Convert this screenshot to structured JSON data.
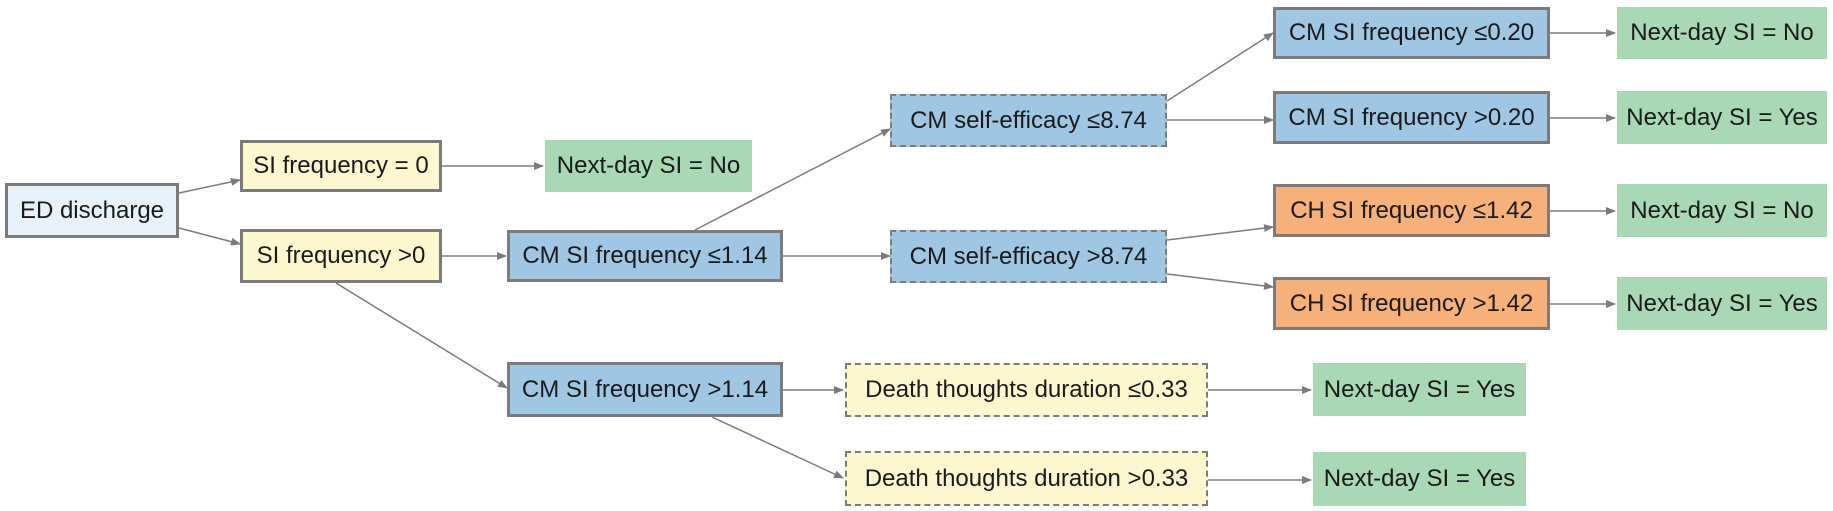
{
  "nodes": {
    "ed_discharge": "ED discharge",
    "si_freq_eq0": "SI frequency = 0",
    "si_freq_gt0": "SI frequency >0",
    "cm_si_le114": "CM SI frequency ≤1.14",
    "cm_si_gt114": "CM SI frequency >1.14",
    "cm_se_le874": "CM self-efficacy ≤8.74",
    "cm_se_gt874": "CM self-efficacy >8.74",
    "cm_si_le020": "CM SI frequency ≤0.20",
    "cm_si_gt020": "CM SI frequency >0.20",
    "ch_si_le142": "CH SI frequency ≤1.42",
    "ch_si_gt142": "CH SI frequency >1.42",
    "death_le033": "Death thoughts duration ≤0.33",
    "death_gt033": "Death thoughts duration >0.33",
    "out_1": "Next-day SI = No",
    "out_2": "Next-day SI = No",
    "out_3": "Next-day SI = Yes",
    "out_4": "Next-day SI = No",
    "out_5": "Next-day SI = Yes",
    "out_6": "Next-day SI = Yes",
    "out_7": "Next-day SI = Yes"
  },
  "colors": {
    "root": "#e8f1f7",
    "screen": "#fdf7cf",
    "cm": "#9fc6e3",
    "ch": "#f7b07a",
    "outcome": "#a8d8b4",
    "edge": "#7b7b7b"
  }
}
